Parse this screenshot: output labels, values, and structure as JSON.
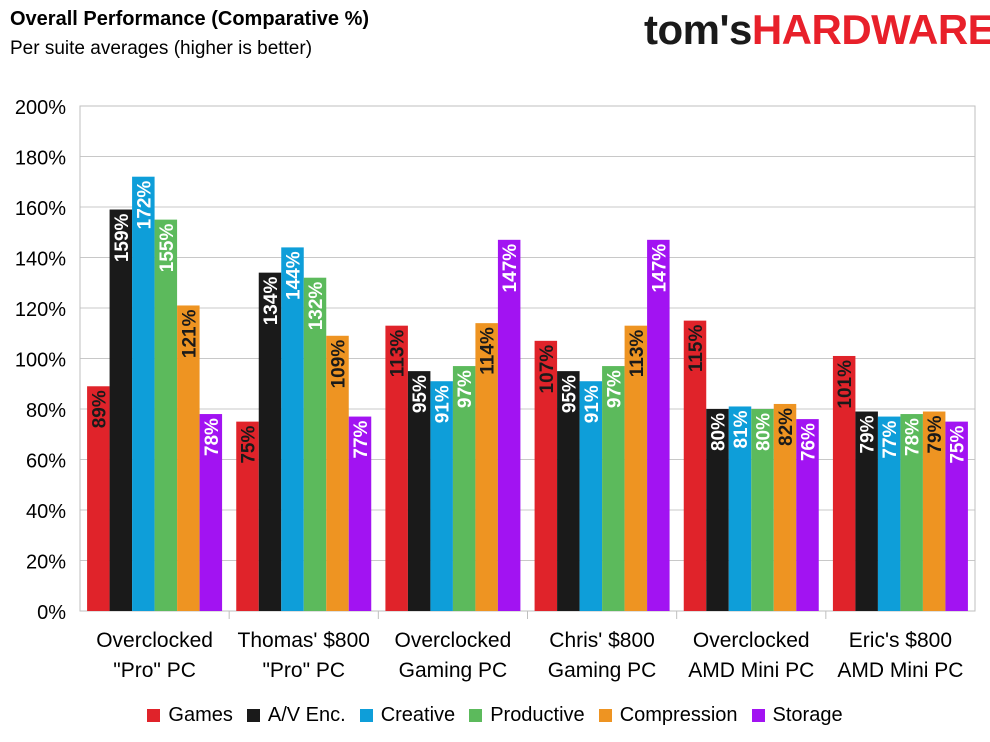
{
  "header": {
    "title": "Overall Performance (Comparative %)",
    "subtitle": "Per suite averages (higher is better)",
    "logo_left": "tom's",
    "logo_right": "HARDWARE"
  },
  "colors": {
    "Games": "#e0232a",
    "A/V Enc.": "#1a1a1a",
    "Creative": "#0e9ed9",
    "Productive": "#5cba5c",
    "Compression": "#ee9422",
    "Storage": "#a213f2"
  },
  "chart_data": {
    "type": "bar",
    "title": "Overall Performance (Comparative %)",
    "subtitle": "Per suite averages (higher is better)",
    "ylim": [
      0,
      200
    ],
    "yticks": [
      "0%",
      "20%",
      "40%",
      "60%",
      "80%",
      "100%",
      "120%",
      "140%",
      "160%",
      "180%",
      "200%"
    ],
    "ytick_values": [
      0,
      20,
      40,
      60,
      80,
      100,
      120,
      140,
      160,
      180,
      200
    ],
    "grid": true,
    "legend_position": "bottom",
    "categories": [
      [
        "Overclocked",
        "\"Pro\" PC"
      ],
      [
        "Thomas' $800",
        "\"Pro\" PC"
      ],
      [
        "Overclocked",
        "Gaming PC"
      ],
      [
        "Chris' $800",
        "Gaming PC"
      ],
      [
        "Overclocked",
        "AMD Mini PC"
      ],
      [
        "Eric's $800",
        "AMD Mini PC"
      ]
    ],
    "series": [
      {
        "name": "Games",
        "values": [
          89,
          75,
          113,
          107,
          115,
          101
        ],
        "labels": [
          "89%",
          "75%",
          "113%",
          "107%",
          "115%",
          "101%"
        ]
      },
      {
        "name": "A/V Enc.",
        "values": [
          159,
          134,
          95,
          95,
          80,
          79
        ],
        "labels": [
          "159%",
          "134%",
          "95%",
          "95%",
          "80%",
          "79%"
        ]
      },
      {
        "name": "Creative",
        "values": [
          172,
          144,
          91,
          91,
          81,
          77
        ],
        "labels": [
          "172%",
          "144%",
          "91%",
          "91%",
          "81%",
          "77%"
        ]
      },
      {
        "name": "Productive",
        "values": [
          155,
          132,
          97,
          97,
          80,
          78
        ],
        "labels": [
          "155%",
          "132%",
          "97%",
          "97%",
          "80%",
          "78%"
        ]
      },
      {
        "name": "Compression",
        "values": [
          121,
          109,
          114,
          113,
          82,
          79
        ],
        "labels": [
          "121%",
          "109%",
          "114%",
          "113%",
          "82%",
          "79%"
        ]
      },
      {
        "name": "Storage",
        "values": [
          78,
          77,
          147,
          147,
          76,
          75
        ],
        "labels": [
          "78%",
          "77%",
          "147%",
          "147%",
          "76%",
          "75%"
        ]
      }
    ]
  }
}
